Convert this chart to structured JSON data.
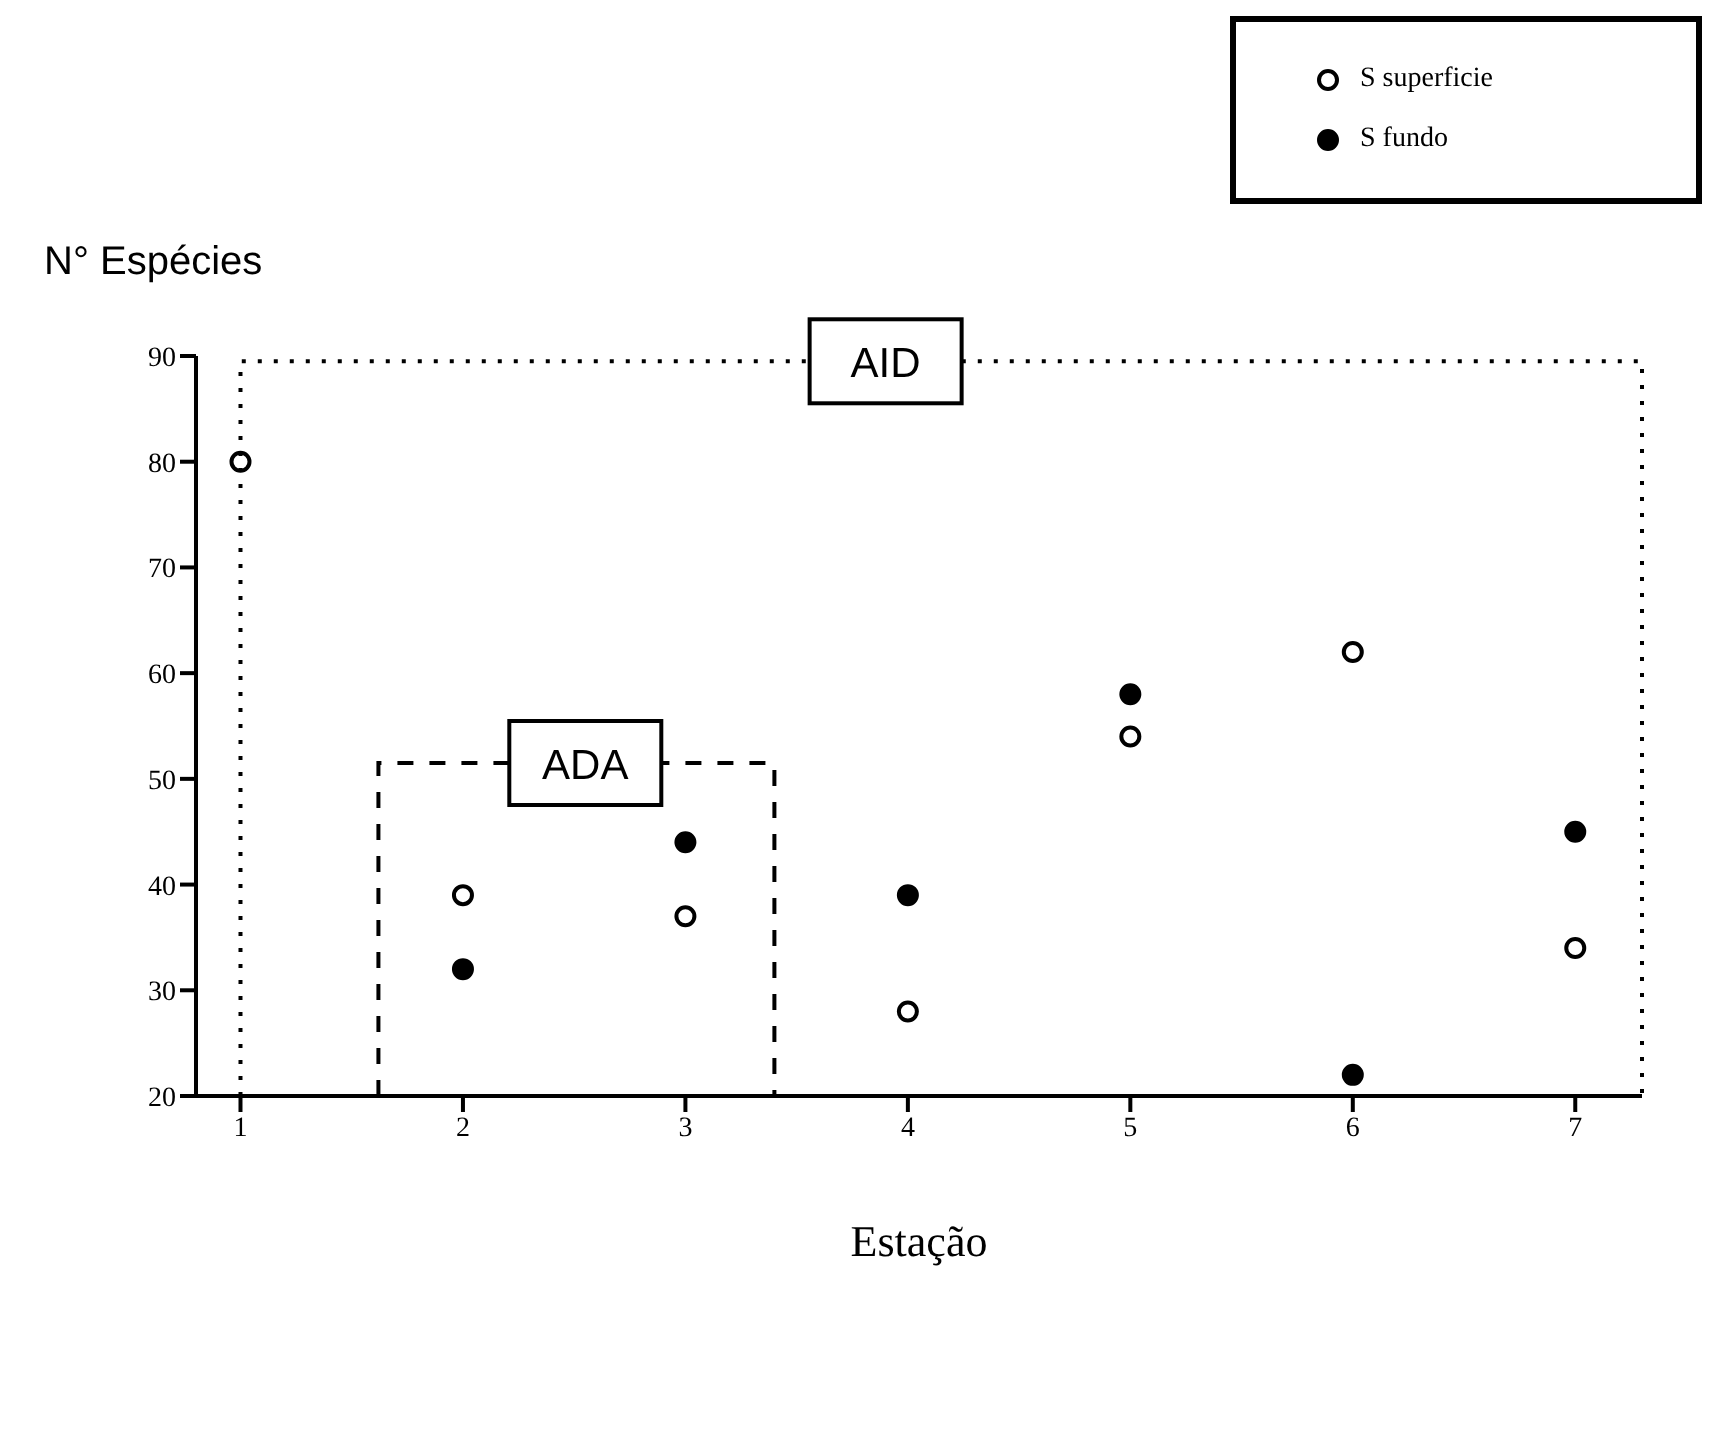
{
  "chart_data": {
    "type": "scatter",
    "ylabel": "N° Espécies",
    "xlabel": "Estação",
    "x": [
      1,
      2,
      3,
      4,
      5,
      6,
      7
    ],
    "series": [
      {
        "name": "S superficie",
        "color": "#ffffff",
        "values": [
          80,
          39,
          37,
          28,
          54,
          62,
          34
        ]
      },
      {
        "name": "S fundo",
        "color": "#000000",
        "values": [
          null,
          32,
          44,
          39,
          58,
          22,
          45
        ]
      }
    ],
    "xlim": [
      0.8,
      7.3
    ],
    "xticks": [
      1,
      2,
      3,
      4,
      5,
      6,
      7
    ],
    "ylim": [
      20,
      90
    ],
    "yticks": [
      20,
      30,
      40,
      50,
      60,
      70,
      80,
      90
    ],
    "marker": "circle",
    "grid": false,
    "legend": "top right",
    "annotations": [
      "AID",
      "ADA"
    ]
  }
}
